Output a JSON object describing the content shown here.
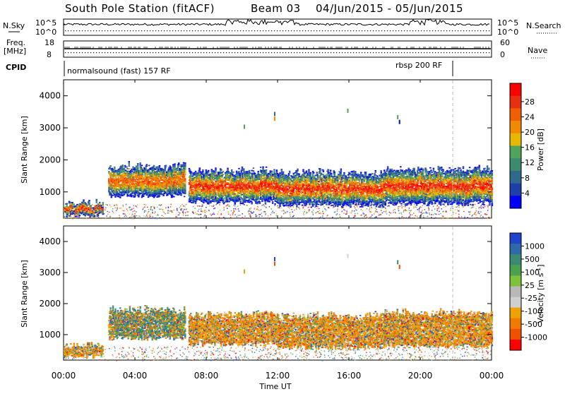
{
  "header": {
    "station": "South Pole Station (fitACF)",
    "beam": "Beam 03",
    "date_range": "04/Jun/2015 - 05/Jun/2015"
  },
  "top_panels": {
    "nsky": {
      "label": "N.Sky",
      "y_top": "10^5",
      "y_bottom": "10^0",
      "right_label": "N.Search",
      "r_top": "10^5",
      "r_bottom": "10^0"
    },
    "freq": {
      "label_line1": "Freq.",
      "label_line2": "[MHz]",
      "y_top": "18",
      "y_bottom": "8",
      "right_label": "Nave",
      "r_top": "60",
      "r_bottom": "0"
    },
    "cpid": {
      "label": "CPID",
      "mode1": "normalsound (fast) 157 RF",
      "mode2": "rbsp 200 RF"
    }
  },
  "colors": {
    "power_scale": [
      "#0000ff",
      "#1f3fa8",
      "#2f6a8e",
      "#3e8a6e",
      "#4fa35a",
      "#e6b800",
      "#f08a00",
      "#f06000",
      "#e83010",
      "#ff0000"
    ],
    "velocity_scale": [
      "#2244cc",
      "#2f6aa8",
      "#3c8a72",
      "#4aa24e",
      "#7cc23a",
      "#b8b8b8",
      "#cfcfcf",
      "#f0a000",
      "#f07a00",
      "#f05000",
      "#ff0000"
    ]
  },
  "chart_data": [
    {
      "type": "heatmap",
      "name_panel": "power",
      "xlabel": "",
      "ylabel": "Slant Range [km]",
      "yticks": [
        "1000",
        "2000",
        "3000",
        "4000"
      ],
      "ylim": [
        180,
        4500
      ],
      "xlim_hours": [
        0,
        24
      ],
      "colorbar_label": "Power [dB]",
      "colorbar_ticks": [
        "4",
        "8",
        "12",
        "16",
        "20",
        "24",
        "28"
      ],
      "echo_regions": [
        {
          "t0": 0.0,
          "t1": 2.2,
          "r0": 300,
          "r1": 750
        },
        {
          "t0": 2.5,
          "t1": 6.8,
          "r0": 900,
          "r1": 1900
        },
        {
          "t0": 7.0,
          "t1": 12.0,
          "r0": 700,
          "r1": 1750
        },
        {
          "t0": 12.0,
          "t1": 18.0,
          "r0": 600,
          "r1": 1700
        },
        {
          "t0": 18.0,
          "t1": 24.0,
          "r0": 650,
          "r1": 1800
        }
      ]
    },
    {
      "type": "heatmap",
      "name_panel": "velocity",
      "xlabel": "Time UT",
      "ylabel": "Slant Range [km]",
      "yticks": [
        "1000",
        "2000",
        "3000",
        "4000"
      ],
      "xticks": [
        "00:00",
        "04:00",
        "08:00",
        "12:00",
        "16:00",
        "20:00",
        "00:00"
      ],
      "ylim": [
        180,
        4500
      ],
      "xlim_hours": [
        0,
        24
      ],
      "colorbar_label": "Velocity [m s^-1]",
      "colorbar_ticks": [
        "1000",
        "500",
        "100",
        "25",
        "-25",
        "-100",
        "-500",
        "-1000"
      ],
      "echo_regions": [
        {
          "t0": 0.0,
          "t1": 2.2,
          "r0": 300,
          "r1": 750
        },
        {
          "t0": 2.5,
          "t1": 6.8,
          "r0": 900,
          "r1": 1900
        },
        {
          "t0": 7.0,
          "t1": 12.0,
          "r0": 700,
          "r1": 1750
        },
        {
          "t0": 12.0,
          "t1": 18.0,
          "r0": 600,
          "r1": 1700
        },
        {
          "t0": 18.0,
          "t1": 24.0,
          "r0": 650,
          "r1": 1800
        }
      ]
    }
  ]
}
